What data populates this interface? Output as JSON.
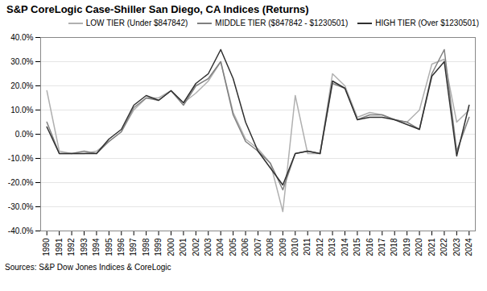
{
  "chart_data": {
    "type": "line",
    "title": "S&P CoreLogic Case-Shiller San Diego, CA Indices (Returns)",
    "caption": "Sources: S&P Dow Jones Indices & CoreLogic",
    "x": [
      1990,
      1991,
      1992,
      1993,
      1994,
      1995,
      1996,
      1997,
      1998,
      1999,
      2000,
      2001,
      2002,
      2003,
      2004,
      2005,
      2006,
      2007,
      2008,
      2009,
      2010,
      2011,
      2012,
      2013,
      2014,
      2015,
      2016,
      2017,
      2018,
      2019,
      2020,
      2021,
      2022,
      2023,
      2024
    ],
    "series": [
      {
        "name": "LOW TIER (Under $847842)",
        "color": "#b0b0b0",
        "values": [
          0.18,
          -0.07,
          -0.08,
          -0.08,
          -0.07,
          -0.03,
          0.01,
          0.1,
          0.15,
          0.15,
          0.18,
          0.13,
          0.17,
          0.22,
          0.3,
          0.09,
          -0.02,
          -0.06,
          -0.12,
          -0.32,
          0.16,
          -0.08,
          -0.08,
          0.25,
          0.2,
          0.07,
          0.09,
          0.08,
          0.06,
          0.05,
          0.1,
          0.29,
          0.31,
          0.05,
          0.1
        ]
      },
      {
        "name": "MIDDLE TIER ($847842 - $1230501)",
        "color": "#808080",
        "values": [
          0.05,
          -0.08,
          -0.08,
          -0.07,
          -0.08,
          -0.03,
          0.01,
          0.11,
          0.15,
          0.14,
          0.18,
          0.12,
          0.2,
          0.23,
          0.3,
          0.08,
          -0.03,
          -0.07,
          -0.12,
          -0.23,
          -0.08,
          -0.07,
          -0.08,
          0.21,
          0.19,
          0.06,
          0.08,
          0.08,
          0.06,
          0.05,
          0.02,
          0.25,
          0.35,
          -0.07,
          0.07
        ]
      },
      {
        "name": "HIGH TIER (Over $1230501)",
        "color": "#303030",
        "values": [
          0.03,
          -0.08,
          -0.08,
          -0.08,
          -0.08,
          -0.02,
          0.02,
          0.12,
          0.16,
          0.14,
          0.18,
          0.13,
          0.21,
          0.25,
          0.35,
          0.23,
          0.05,
          -0.07,
          -0.14,
          -0.21,
          -0.08,
          -0.07,
          -0.08,
          0.22,
          0.19,
          0.06,
          0.07,
          0.07,
          0.06,
          0.04,
          0.02,
          0.24,
          0.3,
          -0.09,
          0.12
        ]
      }
    ],
    "xlim": [
      1989.5,
      2024.5
    ],
    "xticks": [
      1990,
      1991,
      1992,
      1993,
      1994,
      1995,
      1996,
      1997,
      1998,
      1999,
      2000,
      2001,
      2002,
      2003,
      2004,
      2005,
      2006,
      2007,
      2008,
      2009,
      2010,
      2011,
      2012,
      2013,
      2014,
      2015,
      2016,
      2017,
      2018,
      2019,
      2020,
      2021,
      2022,
      2023,
      2024
    ],
    "ylim": [
      -0.4,
      0.4
    ],
    "yticks": [
      {
        "value": -0.4,
        "label": "-40.0%"
      },
      {
        "value": -0.3,
        "label": "-30.0%"
      },
      {
        "value": -0.2,
        "label": "-20.0%"
      },
      {
        "value": -0.1,
        "label": "-10.0%"
      },
      {
        "value": 0.0,
        "label": "0.0%"
      },
      {
        "value": 0.1,
        "label": "10.0%"
      },
      {
        "value": 0.2,
        "label": "20.0%"
      },
      {
        "value": 0.3,
        "label": "30.0%"
      },
      {
        "value": 0.4,
        "label": "40.0%"
      }
    ],
    "grid": "y",
    "legend": "upper right"
  }
}
